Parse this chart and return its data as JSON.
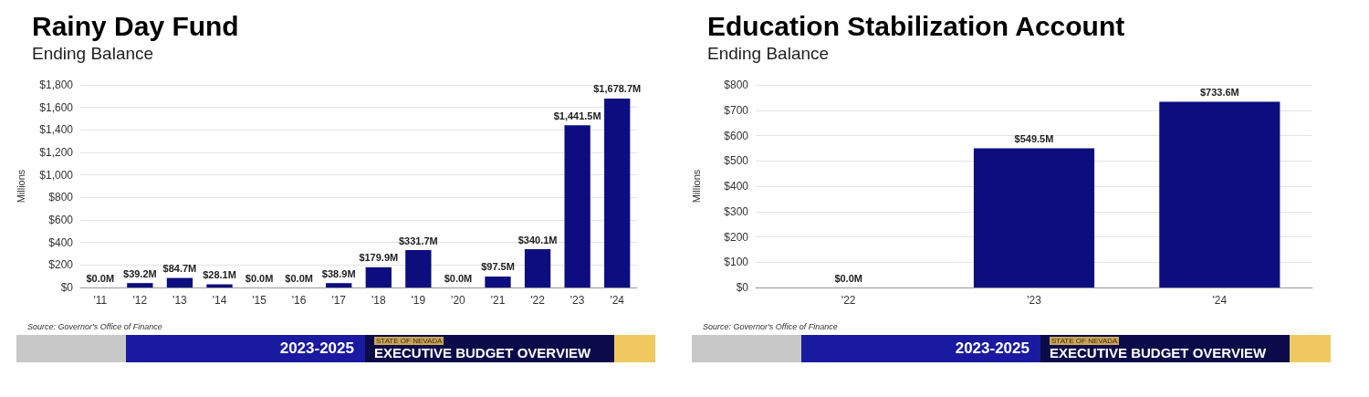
{
  "chart_data": [
    {
      "type": "bar",
      "title": "Rainy Day Fund",
      "subtitle": "Ending Balance",
      "ylabel": "Millions",
      "categories": [
        "'11",
        "'12",
        "'13",
        "'14",
        "'15",
        "'16",
        "'17",
        "'18",
        "'19",
        "'20",
        "'21",
        "'22",
        "'23",
        "'24"
      ],
      "series": [
        {
          "color": "#0d0d80",
          "values": [
            0.0,
            39.2,
            84.7,
            28.1,
            0.0,
            0.0,
            38.9,
            179.9,
            331.7,
            0.0,
            97.5,
            340.1,
            1441.5,
            1678.7
          ],
          "value_labels": [
            "$0.0M",
            "$39.2M",
            "$84.7M",
            "$28.1M",
            "$0.0M",
            "$0.0M",
            "$38.9M",
            "$179.9M",
            "$331.7M",
            "$0.0M",
            "$97.5M",
            "$340.1M",
            "$1,441.5M",
            "$1,678.7M"
          ]
        }
      ],
      "ylim": [
        0,
        1800
      ],
      "yticks": [
        {
          "value": 0,
          "label": "$0"
        },
        {
          "value": 200,
          "label": "$200"
        },
        {
          "value": 400,
          "label": "$400"
        },
        {
          "value": 600,
          "label": "$600"
        },
        {
          "value": 800,
          "label": "$800"
        },
        {
          "value": 1000,
          "label": "$1,000"
        },
        {
          "value": 1200,
          "label": "$1,200"
        },
        {
          "value": 1400,
          "label": "$1,400"
        },
        {
          "value": 1600,
          "label": "$1,600"
        },
        {
          "value": 1800,
          "label": "$1,800"
        }
      ],
      "grid": "y",
      "annotations": [
        "Source: Governor's Office of Finance",
        "2023-2025",
        "STATE OF NEVADA",
        "EXECUTIVE BUDGET OVERVIEW"
      ]
    },
    {
      "type": "bar",
      "title": "Education Stabilization Account",
      "subtitle": "Ending Balance",
      "ylabel": "Millions",
      "categories": [
        "'22",
        "'23",
        "'24"
      ],
      "series": [
        {
          "color": "#0d0d80",
          "values": [
            0.0,
            549.5,
            733.6
          ],
          "value_labels": [
            "$0.0M",
            "$549.5M",
            "$733.6M"
          ]
        }
      ],
      "ylim": [
        0,
        800
      ],
      "yticks": [
        {
          "value": 0,
          "label": "$0"
        },
        {
          "value": 100,
          "label": "$100"
        },
        {
          "value": 200,
          "label": "$200"
        },
        {
          "value": 300,
          "label": "$300"
        },
        {
          "value": 400,
          "label": "$400"
        },
        {
          "value": 500,
          "label": "$500"
        },
        {
          "value": 600,
          "label": "$600"
        },
        {
          "value": 700,
          "label": "$700"
        },
        {
          "value": 800,
          "label": "$800"
        }
      ],
      "grid": "y",
      "annotations": [
        "Source: Governor's Office of Finance",
        "2023-2025",
        "STATE OF NEVADA",
        "EXECUTIVE BUDGET OVERVIEW"
      ]
    }
  ]
}
